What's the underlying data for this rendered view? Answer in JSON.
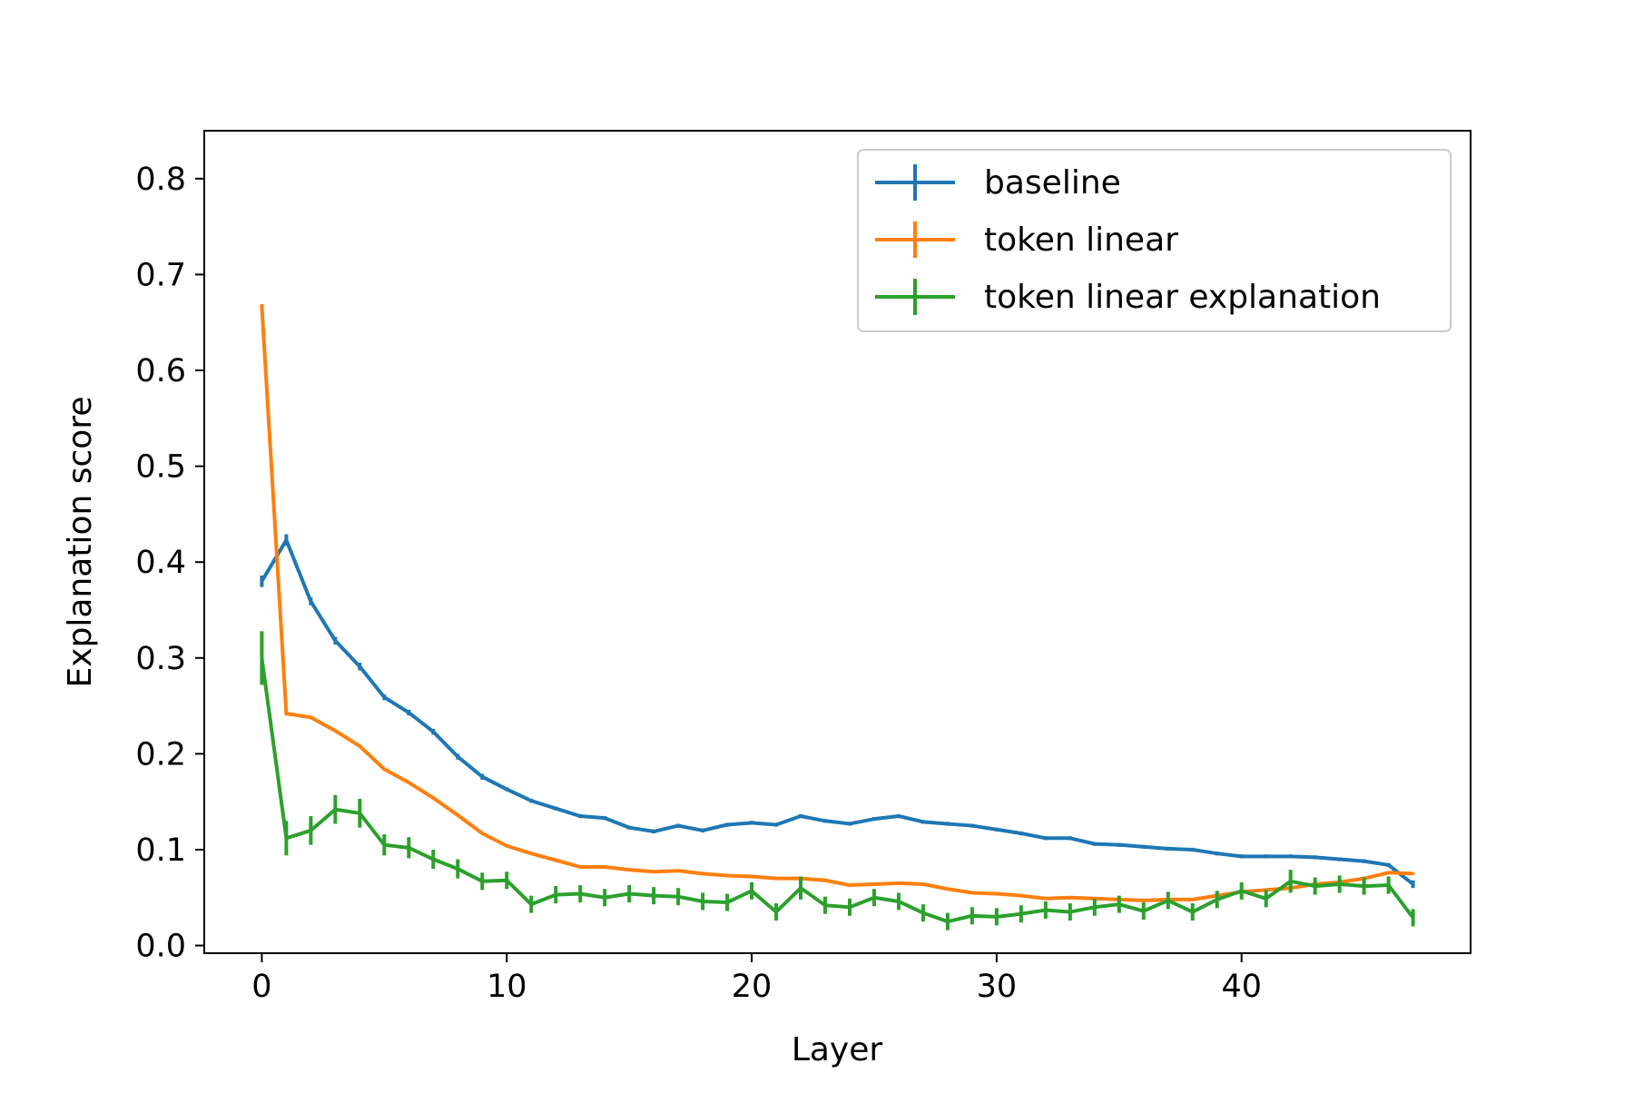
{
  "chart_data": {
    "type": "line",
    "title": "",
    "xlabel": "Layer",
    "ylabel": "Explanation score",
    "xlim": [
      -2.35,
      49.35
    ],
    "ylim": [
      -0.008,
      0.85
    ],
    "xticks": [
      0,
      10,
      20,
      30,
      40
    ],
    "xtick_labels": [
      "0",
      "10",
      "20",
      "30",
      "40"
    ],
    "yticks": [
      0.0,
      0.1,
      0.2,
      0.3,
      0.4,
      0.5,
      0.6,
      0.7,
      0.8
    ],
    "ytick_labels": [
      "0.0",
      "0.1",
      "0.2",
      "0.3",
      "0.4",
      "0.5",
      "0.6",
      "0.7",
      "0.8"
    ],
    "grid": false,
    "legend_position": "top-right",
    "x": [
      0,
      1,
      2,
      3,
      4,
      5,
      6,
      7,
      8,
      9,
      10,
      11,
      12,
      13,
      14,
      15,
      16,
      17,
      18,
      19,
      20,
      21,
      22,
      23,
      24,
      25,
      26,
      27,
      28,
      29,
      30,
      31,
      32,
      33,
      34,
      35,
      36,
      37,
      38,
      39,
      40,
      41,
      42,
      43,
      44,
      45,
      46,
      47
    ],
    "series": [
      {
        "name": "baseline",
        "color": "#1f77b4",
        "values": [
          0.38,
          0.423,
          0.359,
          0.318,
          0.291,
          0.259,
          0.243,
          0.223,
          0.197,
          0.176,
          0.163,
          0.151,
          0.143,
          0.135,
          0.133,
          0.123,
          0.119,
          0.125,
          0.12,
          0.126,
          0.128,
          0.126,
          0.135,
          0.13,
          0.127,
          0.132,
          0.135,
          0.129,
          0.127,
          0.125,
          0.121,
          0.117,
          0.112,
          0.112,
          0.106,
          0.105,
          0.103,
          0.101,
          0.1,
          0.096,
          0.093,
          0.093,
          0.093,
          0.092,
          0.09,
          0.088,
          0.084,
          0.064
        ],
        "errors": [
          0.006,
          0.006,
          0.004,
          0.004,
          0.004,
          0.003,
          0.003,
          0.003,
          0.003,
          0.003,
          0.002,
          0.002,
          0.002,
          0.002,
          0.002,
          0.002,
          0.002,
          0.002,
          0.002,
          0.002,
          0.002,
          0.002,
          0.002,
          0.002,
          0.002,
          0.002,
          0.002,
          0.002,
          0.002,
          0.002,
          0.002,
          0.002,
          0.002,
          0.002,
          0.002,
          0.002,
          0.002,
          0.002,
          0.002,
          0.002,
          0.002,
          0.002,
          0.002,
          0.002,
          0.002,
          0.002,
          0.002,
          0.004
        ]
      },
      {
        "name": "token linear",
        "color": "#ff7f0e",
        "values": [
          0.667,
          0.242,
          0.238,
          0.224,
          0.208,
          0.184,
          0.17,
          0.154,
          0.136,
          0.117,
          0.104,
          0.096,
          0.089,
          0.082,
          0.082,
          0.079,
          0.077,
          0.078,
          0.075,
          0.073,
          0.072,
          0.07,
          0.07,
          0.068,
          0.063,
          0.064,
          0.065,
          0.064,
          0.059,
          0.055,
          0.054,
          0.052,
          0.049,
          0.05,
          0.049,
          0.048,
          0.047,
          0.048,
          0.048,
          0.052,
          0.056,
          0.058,
          0.06,
          0.064,
          0.066,
          0.07,
          0.076,
          0.075
        ],
        "errors": [
          0.002,
          0.002,
          0.001,
          0.001,
          0.001,
          0.001,
          0.001,
          0.001,
          0.001,
          0.001,
          0.001,
          0.001,
          0.001,
          0.001,
          0.001,
          0.001,
          0.001,
          0.001,
          0.001,
          0.001,
          0.001,
          0.001,
          0.001,
          0.001,
          0.001,
          0.001,
          0.001,
          0.001,
          0.001,
          0.001,
          0.001,
          0.001,
          0.001,
          0.001,
          0.001,
          0.001,
          0.001,
          0.001,
          0.001,
          0.001,
          0.001,
          0.001,
          0.001,
          0.001,
          0.001,
          0.001,
          0.001,
          0.001
        ]
      },
      {
        "name": "token linear explanation",
        "color": "#2ca02c",
        "values": [
          0.3,
          0.112,
          0.12,
          0.142,
          0.138,
          0.105,
          0.102,
          0.09,
          0.08,
          0.067,
          0.068,
          0.043,
          0.053,
          0.054,
          0.05,
          0.054,
          0.052,
          0.051,
          0.046,
          0.045,
          0.057,
          0.035,
          0.06,
          0.042,
          0.04,
          0.05,
          0.046,
          0.034,
          0.025,
          0.031,
          0.03,
          0.033,
          0.037,
          0.035,
          0.04,
          0.043,
          0.036,
          0.047,
          0.035,
          0.048,
          0.057,
          0.049,
          0.067,
          0.062,
          0.064,
          0.062,
          0.063,
          0.029
        ],
        "errors": [
          0.028,
          0.018,
          0.015,
          0.015,
          0.015,
          0.011,
          0.011,
          0.01,
          0.01,
          0.009,
          0.009,
          0.009,
          0.009,
          0.009,
          0.009,
          0.009,
          0.009,
          0.009,
          0.009,
          0.009,
          0.009,
          0.009,
          0.012,
          0.009,
          0.009,
          0.009,
          0.009,
          0.009,
          0.009,
          0.009,
          0.009,
          0.009,
          0.009,
          0.009,
          0.009,
          0.009,
          0.009,
          0.009,
          0.009,
          0.009,
          0.009,
          0.009,
          0.012,
          0.009,
          0.009,
          0.009,
          0.009,
          0.009
        ]
      }
    ]
  }
}
